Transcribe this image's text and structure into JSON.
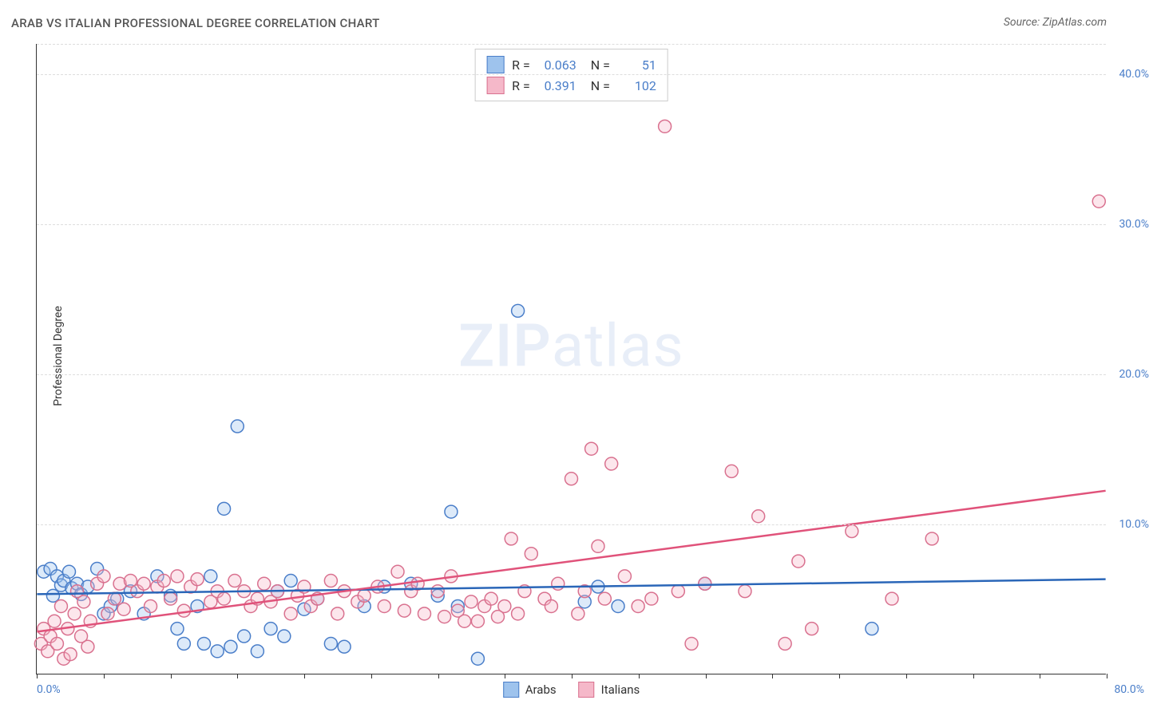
{
  "title": "ARAB VS ITALIAN PROFESSIONAL DEGREE CORRELATION CHART",
  "source": "Source: ZipAtlas.com",
  "ylabel": "Professional Degree",
  "watermark_zip": "ZIP",
  "watermark_atlas": "atlas",
  "chart": {
    "type": "scatter",
    "xlim": [
      0,
      80
    ],
    "ylim": [
      0,
      42
    ],
    "x_axis_label_left": "0.0%",
    "x_axis_label_right": "80.0%",
    "y_ticks": [
      {
        "v": 10,
        "label": "10.0%"
      },
      {
        "v": 20,
        "label": "20.0%"
      },
      {
        "v": 30,
        "label": "30.0%"
      },
      {
        "v": 40,
        "label": "40.0%"
      }
    ],
    "x_tick_positions": [
      0,
      5,
      10,
      15,
      20,
      25,
      30,
      35,
      40,
      45,
      50,
      55,
      60,
      65,
      70,
      75,
      80
    ],
    "background_color": "#ffffff",
    "grid_color": "#dddddd",
    "axis_color": "#333333",
    "marker_radius": 8,
    "marker_stroke_width": 1.5,
    "marker_fill_opacity": 0.35,
    "trend_line_width": 2.5,
    "legend": {
      "rows": [
        {
          "swatch_fill": "#9ec3ed",
          "swatch_stroke": "#4a7ec9",
          "r_label": "R =",
          "r_val": "0.063",
          "n_label": "N =",
          "n_val": "51"
        },
        {
          "swatch_fill": "#f5b8c9",
          "swatch_stroke": "#d9718f",
          "r_label": "R =",
          "r_val": "0.391",
          "n_label": "N =",
          "n_val": "102"
        }
      ]
    },
    "bottom_legend": [
      {
        "swatch_fill": "#9ec3ed",
        "swatch_stroke": "#4a7ec9",
        "label": "Arabs"
      },
      {
        "swatch_fill": "#f5b8c9",
        "swatch_stroke": "#d9718f",
        "label": "Italians"
      }
    ],
    "series": [
      {
        "name": "Arabs",
        "color_fill": "#9ec3ed",
        "color_stroke": "#4a7ec9",
        "trend_color": "#2a66b8",
        "trend": {
          "x1": 0,
          "y1": 5.3,
          "x2": 80,
          "y2": 6.3
        },
        "points": [
          [
            0.5,
            6.8
          ],
          [
            1.0,
            7.0
          ],
          [
            1.2,
            5.2
          ],
          [
            1.5,
            6.5
          ],
          [
            1.8,
            5.9
          ],
          [
            2.0,
            6.2
          ],
          [
            2.4,
            6.8
          ],
          [
            2.6,
            5.7
          ],
          [
            3.0,
            6.0
          ],
          [
            3.3,
            5.3
          ],
          [
            3.8,
            5.8
          ],
          [
            4.5,
            7.0
          ],
          [
            5.0,
            4.0
          ],
          [
            5.5,
            4.5
          ],
          [
            6.0,
            5.0
          ],
          [
            7.0,
            5.5
          ],
          [
            8.0,
            4.0
          ],
          [
            9.0,
            6.5
          ],
          [
            10.0,
            5.2
          ],
          [
            10.5,
            3.0
          ],
          [
            11.0,
            2.0
          ],
          [
            12.0,
            4.5
          ],
          [
            12.5,
            2.0
          ],
          [
            13.0,
            6.5
          ],
          [
            13.5,
            1.5
          ],
          [
            14.0,
            11.0
          ],
          [
            14.5,
            1.8
          ],
          [
            15.0,
            16.5
          ],
          [
            15.5,
            2.5
          ],
          [
            16.5,
            1.5
          ],
          [
            17.5,
            3.0
          ],
          [
            18.0,
            5.5
          ],
          [
            18.5,
            2.5
          ],
          [
            19.0,
            6.2
          ],
          [
            20.0,
            4.3
          ],
          [
            21.0,
            5.0
          ],
          [
            22.0,
            2.0
          ],
          [
            23.0,
            1.8
          ],
          [
            24.5,
            4.5
          ],
          [
            26.0,
            5.8
          ],
          [
            28.0,
            6.0
          ],
          [
            30.0,
            5.2
          ],
          [
            31.0,
            10.8
          ],
          [
            31.5,
            4.5
          ],
          [
            33.0,
            1.0
          ],
          [
            36.0,
            24.2
          ],
          [
            41.0,
            4.8
          ],
          [
            42.0,
            5.8
          ],
          [
            43.5,
            4.5
          ],
          [
            50.0,
            6.0
          ],
          [
            62.5,
            3.0
          ]
        ]
      },
      {
        "name": "Italians",
        "color_fill": "#f5b8c9",
        "color_stroke": "#d9718f",
        "trend_color": "#e0527a",
        "trend": {
          "x1": 0,
          "y1": 2.8,
          "x2": 80,
          "y2": 12.2
        },
        "points": [
          [
            0.3,
            2.0
          ],
          [
            0.5,
            3.0
          ],
          [
            0.8,
            1.5
          ],
          [
            1.0,
            2.5
          ],
          [
            1.3,
            3.5
          ],
          [
            1.5,
            2.0
          ],
          [
            1.8,
            4.5
          ],
          [
            2.0,
            1.0
          ],
          [
            2.3,
            3.0
          ],
          [
            2.5,
            1.3
          ],
          [
            2.8,
            4.0
          ],
          [
            3.0,
            5.5
          ],
          [
            3.3,
            2.5
          ],
          [
            3.5,
            4.8
          ],
          [
            3.8,
            1.8
          ],
          [
            4.0,
            3.5
          ],
          [
            4.5,
            6.0
          ],
          [
            5.0,
            6.5
          ],
          [
            5.3,
            4.0
          ],
          [
            5.8,
            5.0
          ],
          [
            6.2,
            6.0
          ],
          [
            6.5,
            4.3
          ],
          [
            7.0,
            6.2
          ],
          [
            7.5,
            5.5
          ],
          [
            8.0,
            6.0
          ],
          [
            8.5,
            4.5
          ],
          [
            9.0,
            5.8
          ],
          [
            9.5,
            6.2
          ],
          [
            10.0,
            5.0
          ],
          [
            10.5,
            6.5
          ],
          [
            11.0,
            4.2
          ],
          [
            11.5,
            5.8
          ],
          [
            12.0,
            6.3
          ],
          [
            13.0,
            4.8
          ],
          [
            13.5,
            5.5
          ],
          [
            14.0,
            5.0
          ],
          [
            14.8,
            6.2
          ],
          [
            15.5,
            5.5
          ],
          [
            16.0,
            4.5
          ],
          [
            16.5,
            5.0
          ],
          [
            17.0,
            6.0
          ],
          [
            17.5,
            4.8
          ],
          [
            18.0,
            5.5
          ],
          [
            19.0,
            4.0
          ],
          [
            19.5,
            5.2
          ],
          [
            20.0,
            5.8
          ],
          [
            20.5,
            4.5
          ],
          [
            21.0,
            5.0
          ],
          [
            22.0,
            6.2
          ],
          [
            22.5,
            4.0
          ],
          [
            23.0,
            5.5
          ],
          [
            24.0,
            4.8
          ],
          [
            24.5,
            5.2
          ],
          [
            25.5,
            5.8
          ],
          [
            26.0,
            4.5
          ],
          [
            27.0,
            6.8
          ],
          [
            27.5,
            4.2
          ],
          [
            28.0,
            5.5
          ],
          [
            28.5,
            6.0
          ],
          [
            29.0,
            4.0
          ],
          [
            30.0,
            5.5
          ],
          [
            30.5,
            3.8
          ],
          [
            31.0,
            6.5
          ],
          [
            31.5,
            4.2
          ],
          [
            32.0,
            3.5
          ],
          [
            32.5,
            4.8
          ],
          [
            33.0,
            3.5
          ],
          [
            33.5,
            4.5
          ],
          [
            34.0,
            5.0
          ],
          [
            34.5,
            3.8
          ],
          [
            35.0,
            4.5
          ],
          [
            35.5,
            9.0
          ],
          [
            36.0,
            4.0
          ],
          [
            36.5,
            5.5
          ],
          [
            37.0,
            8.0
          ],
          [
            38.0,
            5.0
          ],
          [
            38.5,
            4.5
          ],
          [
            39.0,
            6.0
          ],
          [
            40.0,
            13.0
          ],
          [
            40.5,
            4.0
          ],
          [
            41.0,
            5.5
          ],
          [
            41.5,
            15.0
          ],
          [
            42.0,
            8.5
          ],
          [
            42.5,
            5.0
          ],
          [
            43.0,
            14.0
          ],
          [
            44.0,
            6.5
          ],
          [
            45.0,
            4.5
          ],
          [
            46.0,
            5.0
          ],
          [
            47.0,
            36.5
          ],
          [
            48.0,
            5.5
          ],
          [
            49.0,
            2.0
          ],
          [
            50.0,
            6.0
          ],
          [
            52.0,
            13.5
          ],
          [
            53.0,
            5.5
          ],
          [
            54.0,
            10.5
          ],
          [
            56.0,
            2.0
          ],
          [
            57.0,
            7.5
          ],
          [
            58.0,
            3.0
          ],
          [
            61.0,
            9.5
          ],
          [
            64.0,
            5.0
          ],
          [
            67.0,
            9.0
          ],
          [
            79.5,
            31.5
          ]
        ]
      }
    ]
  }
}
